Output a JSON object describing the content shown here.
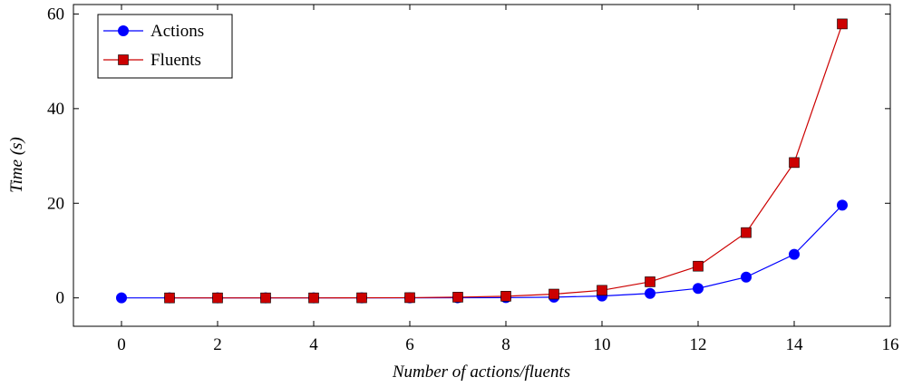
{
  "chart_data": {
    "type": "line",
    "title": "",
    "xlabel": "Number of actions/fluents",
    "ylabel": "Time (s)",
    "xlim": [
      -1,
      16
    ],
    "ylim": [
      -6,
      62
    ],
    "xticks": [
      0,
      2,
      4,
      6,
      8,
      10,
      12,
      14,
      16
    ],
    "yticks": [
      0,
      20,
      40,
      60
    ],
    "grid": false,
    "legend_position": "top-left",
    "series": [
      {
        "name": "Actions",
        "color": "#0000ff",
        "marker": "circle",
        "x": [
          0,
          1,
          2,
          3,
          4,
          5,
          6,
          7,
          8,
          9,
          10,
          11,
          12,
          13,
          14,
          15
        ],
        "y": [
          0.0,
          0.0,
          0.0,
          0.0,
          0.0,
          0.0,
          0.01,
          0.02,
          0.05,
          0.15,
          0.4,
          0.95,
          2.0,
          4.4,
          9.2,
          19.6
        ]
      },
      {
        "name": "Fluents",
        "color": "#cc0000",
        "marker": "square",
        "x": [
          1,
          2,
          3,
          4,
          5,
          6,
          7,
          8,
          9,
          10,
          11,
          12,
          13,
          14,
          15
        ],
        "y": [
          0.0,
          0.0,
          0.0,
          0.0,
          0.02,
          0.05,
          0.15,
          0.35,
          0.8,
          1.6,
          3.4,
          6.7,
          13.8,
          28.6,
          57.9
        ]
      }
    ]
  }
}
